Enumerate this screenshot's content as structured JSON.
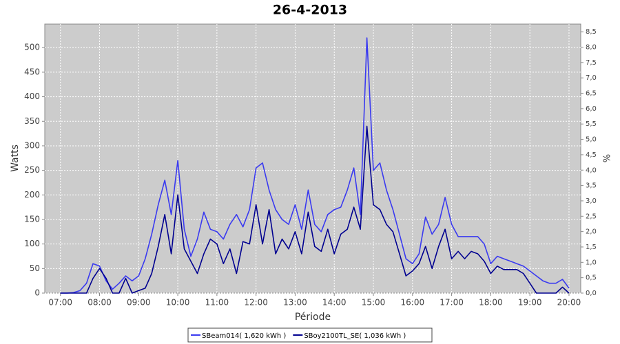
{
  "chart_data": {
    "type": "line",
    "title": "26-4-2013",
    "xlabel": "Période",
    "ylabel": "Watts",
    "y2label": "%",
    "x": [
      "07:00",
      "07:10",
      "07:20",
      "07:30",
      "07:40",
      "07:50",
      "08:00",
      "08:10",
      "08:20",
      "08:30",
      "08:40",
      "08:50",
      "09:00",
      "09:10",
      "09:20",
      "09:30",
      "09:40",
      "09:50",
      "10:00",
      "10:10",
      "10:20",
      "10:30",
      "10:40",
      "10:50",
      "11:00",
      "11:10",
      "11:20",
      "11:30",
      "11:40",
      "11:50",
      "12:00",
      "12:10",
      "12:20",
      "12:30",
      "12:40",
      "12:50",
      "13:00",
      "13:10",
      "13:20",
      "13:30",
      "13:40",
      "13:50",
      "14:00",
      "14:10",
      "14:20",
      "14:30",
      "14:40",
      "14:50",
      "15:00",
      "15:10",
      "15:20",
      "15:30",
      "15:40",
      "15:50",
      "16:00",
      "16:10",
      "16:20",
      "16:30",
      "16:40",
      "16:50",
      "17:00",
      "17:10",
      "17:20",
      "17:30",
      "17:40",
      "17:50",
      "18:00",
      "18:10",
      "18:20",
      "18:30",
      "18:40",
      "18:50",
      "19:00",
      "19:10",
      "19:20",
      "19:30",
      "19:40",
      "19:50",
      "20:00"
    ],
    "series": [
      {
        "name": "SBeam014( 1,620 kWh )",
        "color": "#3a3af0",
        "values": [
          0,
          0,
          1,
          5,
          20,
          60,
          55,
          25,
          8,
          20,
          35,
          25,
          35,
          70,
          120,
          180,
          230,
          160,
          270,
          130,
          75,
          110,
          165,
          130,
          125,
          110,
          140,
          160,
          135,
          170,
          255,
          265,
          210,
          170,
          150,
          140,
          180,
          130,
          210,
          140,
          125,
          160,
          170,
          175,
          210,
          255,
          160,
          520,
          250,
          265,
          210,
          170,
          120,
          70,
          60,
          80,
          155,
          120,
          140,
          195,
          140,
          115,
          115,
          115,
          115,
          100,
          60,
          75,
          70,
          65,
          60,
          55,
          45,
          35,
          25,
          20,
          20,
          28,
          10
        ]
      },
      {
        "name": "SBoy2100TL_SE( 1,036 kWh )",
        "color": "#000090",
        "values": [
          0,
          0,
          0,
          0,
          0,
          30,
          50,
          30,
          0,
          0,
          30,
          0,
          5,
          10,
          40,
          95,
          160,
          80,
          200,
          90,
          65,
          40,
          80,
          110,
          100,
          60,
          90,
          40,
          105,
          100,
          180,
          100,
          170,
          80,
          110,
          90,
          125,
          80,
          165,
          95,
          85,
          130,
          80,
          120,
          130,
          175,
          130,
          340,
          180,
          170,
          140,
          125,
          80,
          35,
          45,
          60,
          95,
          50,
          95,
          130,
          70,
          85,
          70,
          85,
          80,
          65,
          40,
          55,
          48,
          48,
          48,
          40,
          20,
          0,
          0,
          0,
          0,
          12,
          0
        ]
      }
    ],
    "xlim": [
      "06:36",
      "20:18"
    ],
    "xticks": [
      "07:00",
      "08:00",
      "09:00",
      "10:00",
      "11:00",
      "12:00",
      "13:00",
      "14:00",
      "15:00",
      "16:00",
      "17:00",
      "18:00",
      "19:00",
      "20:00"
    ],
    "ylim": [
      0,
      548
    ],
    "yticks": [
      0,
      50,
      100,
      150,
      200,
      250,
      300,
      350,
      400,
      450,
      500
    ],
    "y2lim": [
      0,
      8.75
    ],
    "y2ticks": [
      {
        "value": 0,
        "label": "0,0"
      },
      {
        "value": 0.5,
        "label": "0,5"
      },
      {
        "value": 1,
        "label": "1,0"
      },
      {
        "value": 1.5,
        "label": "1,5"
      },
      {
        "value": 2,
        "label": "2,0"
      },
      {
        "value": 2.5,
        "label": "2,5"
      },
      {
        "value": 3,
        "label": "3,0"
      },
      {
        "value": 3.5,
        "label": "3,5"
      },
      {
        "value": 4,
        "label": "4,0"
      },
      {
        "value": 4.5,
        "label": "4,5"
      },
      {
        "value": 5,
        "label": "5,0"
      },
      {
        "value": 5.5,
        "label": "5,5"
      },
      {
        "value": 6,
        "label": "6,0"
      },
      {
        "value": 6.5,
        "label": "6,5"
      },
      {
        "value": 7,
        "label": "7,0"
      },
      {
        "value": 7.5,
        "label": "7,5"
      },
      {
        "value": 8,
        "label": "8,0"
      },
      {
        "value": 8.5,
        "label": "8,5"
      }
    ],
    "grid": true
  }
}
